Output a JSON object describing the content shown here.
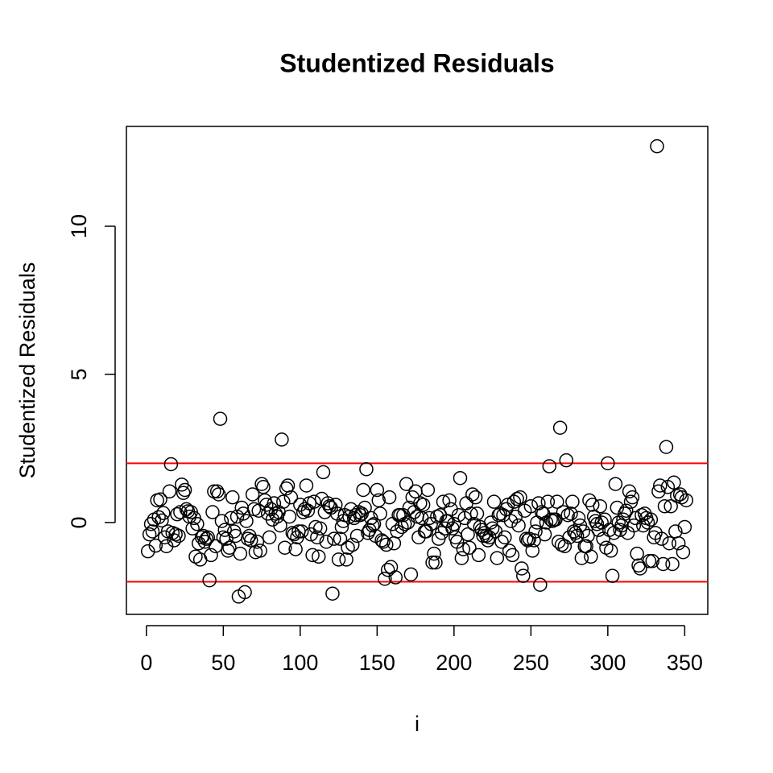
{
  "chart_data": {
    "type": "scatter",
    "title": "Studentized Residuals",
    "xlabel": "i",
    "ylabel": "Studentized Residuals",
    "xlim": [
      -13,
      365
    ],
    "ylim": [
      -3.1,
      13.37
    ],
    "xticks": [
      0,
      50,
      100,
      150,
      200,
      250,
      300,
      350
    ],
    "yticks": [
      0,
      5,
      10
    ],
    "color": "#000000",
    "hlines": [
      2,
      -2
    ],
    "hline_color": "#ff0000",
    "x": [
      1,
      2,
      3,
      4,
      5,
      6,
      7,
      8,
      9,
      10,
      11,
      12,
      13,
      14,
      15,
      16,
      17,
      18,
      19,
      20,
      21,
      22,
      23,
      24,
      25,
      26,
      27,
      28,
      29,
      30,
      31,
      32,
      33,
      34,
      35,
      36,
      37,
      38,
      39,
      40,
      41,
      42,
      43,
      44,
      45,
      46,
      47,
      48,
      49,
      50,
      51,
      52,
      53,
      54,
      55,
      56,
      57,
      58,
      59,
      60,
      61,
      62,
      63,
      64,
      65,
      66,
      67,
      68,
      69,
      70,
      71,
      72,
      73,
      74,
      75,
      76,
      77,
      78,
      79,
      80,
      81,
      82,
      83,
      84,
      85,
      86,
      87,
      88,
      89,
      90,
      91,
      92,
      93,
      94,
      95,
      96,
      97,
      98,
      99,
      100,
      101,
      102,
      103,
      104,
      105,
      106,
      107,
      108,
      109,
      110,
      111,
      112,
      113,
      114,
      115,
      116,
      117,
      118,
      119,
      120,
      121,
      122,
      123,
      124,
      125,
      126,
      127,
      128,
      129,
      130,
      131,
      132,
      133,
      134,
      135,
      136,
      137,
      138,
      139,
      140,
      141,
      142,
      143,
      144,
      145,
      146,
      147,
      148,
      149,
      150,
      151,
      152,
      153,
      154,
      155,
      156,
      157,
      158,
      159,
      160,
      161,
      162,
      163,
      164,
      165,
      166,
      167,
      168,
      169,
      170,
      171,
      172,
      173,
      174,
      175,
      176,
      177,
      178,
      179,
      180,
      181,
      182,
      183,
      184,
      185,
      186,
      187,
      188,
      189,
      190,
      191,
      192,
      193,
      194,
      195,
      196,
      197,
      198,
      199,
      200,
      201,
      202,
      203,
      204,
      205,
      206,
      207,
      208,
      209,
      210,
      211,
      212,
      213,
      214,
      215,
      216,
      217,
      218,
      219,
      220,
      221,
      222,
      223,
      224,
      225,
      226,
      227,
      228,
      229,
      230,
      231,
      232,
      233,
      234,
      235,
      236,
      237,
      238,
      239,
      240,
      241,
      242,
      243,
      244,
      245,
      246,
      247,
      248,
      249,
      250,
      251,
      252,
      253,
      254,
      255,
      256,
      257,
      258,
      259,
      260,
      261,
      262,
      263,
      264,
      265,
      266,
      267,
      268,
      269,
      270,
      271,
      272,
      273,
      274,
      275,
      276,
      277,
      278,
      279,
      280,
      281,
      282,
      283,
      284,
      285,
      286,
      287,
      288,
      289,
      290,
      291,
      292,
      293,
      294,
      295,
      296,
      297,
      298,
      299,
      300,
      301,
      302,
      303,
      304,
      305,
      306,
      307,
      308,
      309,
      310,
      311,
      312,
      313,
      314,
      315,
      316,
      317,
      318,
      319,
      320,
      321,
      322,
      323,
      324,
      325,
      326,
      327,
      328,
      329,
      330,
      331,
      332,
      333,
      334,
      335,
      336,
      337,
      338,
      339,
      340,
      341,
      342,
      343,
      344,
      345,
      346,
      347,
      348,
      349,
      350,
      351
    ],
    "values": [
      -0.97,
      -0.4,
      -0.05,
      -0.3,
      0.1,
      -0.78,
      0.75,
      0.18,
      0.78,
      0.07,
      0.32,
      -0.5,
      -0.8,
      -0.3,
      1.05,
      1.97,
      -0.35,
      -0.6,
      -0.4,
      0.28,
      -0.45,
      0.35,
      1.28,
      1.0,
      1.1,
      0.45,
      0.38,
      0.2,
      0.35,
      -0.2,
      0.15,
      -1.15,
      -0.05,
      -0.7,
      -1.25,
      -0.5,
      -0.45,
      -0.65,
      -0.55,
      -0.5,
      -1.95,
      -1.1,
      0.35,
      1.05,
      -0.8,
      1.05,
      0.95,
      3.5,
      0.05,
      -0.5,
      -0.25,
      -0.55,
      -0.95,
      -0.85,
      0.15,
      0.85,
      -0.3,
      -0.45,
      0.2,
      -2.5,
      -1.05,
      0.5,
      0.3,
      -2.35,
      0.05,
      -0.55,
      -0.45,
      -0.6,
      0.95,
      0.45,
      -1.0,
      -0.65,
      0.4,
      -0.95,
      1.3,
      1.2,
      0.75,
      0.6,
      0.3,
      -0.5,
      0.45,
      0.1,
      0.65,
      0.3,
      0.2,
      0.35,
      -0.1,
      2.8,
      0.7,
      -0.85,
      1.15,
      1.25,
      0.2,
      0.85,
      -0.35,
      -0.4,
      -0.9,
      -0.5,
      -0.3,
      0.6,
      -0.3,
      0.35,
      0.45,
      1.25,
      0.4,
      0.65,
      -0.4,
      -1.1,
      0.7,
      -0.15,
      -0.5,
      -1.15,
      -0.2,
      0.8,
      1.7,
      0.35,
      -0.65,
      0.65,
      0.55,
      0.5,
      -2.4,
      -0.55,
      0.6,
      0.3,
      -1.25,
      -0.55,
      -0.15,
      0.05,
      0.25,
      -1.25,
      -0.85,
      0.2,
      0.45,
      -0.75,
      0.15,
      0.25,
      -0.45,
      0.35,
      0.25,
      0.3,
      1.1,
      0.5,
      1.8,
      -0.35,
      -0.25,
      0.15,
      -0.1,
      -0.05,
      -0.45,
      1.1,
      0.75,
      0.3,
      -0.6,
      -0.65,
      -1.9,
      -0.75,
      -1.6,
      0.85,
      -1.5,
      -0.05,
      -0.7,
      -1.85,
      -0.3,
      0.25,
      0.25,
      -0.15,
      0.25,
      -0.05,
      1.3,
      0.0,
      0.5,
      -1.75,
      0.85,
      0.35,
      1.05,
      0.2,
      -0.5,
      0.65,
      0.15,
      0.6,
      -0.3,
      -0.3,
      1.1,
      0.15,
      -0.05,
      -1.35,
      -1.05,
      -1.35,
      0.2,
      -0.55,
      0.25,
      -0.35,
      0.7,
      -0.2,
      0.05,
      0.05,
      0.75,
      0.45,
      -0.2,
      -0.05,
      -0.5,
      -0.65,
      0.25,
      1.5,
      -1.2,
      -0.9,
      0.15,
      0.65,
      -0.4,
      -0.85,
      0.3,
      0.95,
      -0.05,
      0.85,
      0.3,
      -1.1,
      -0.15,
      -0.25,
      -0.45,
      -0.35,
      -0.45,
      -0.6,
      -0.5,
      0.0,
      -0.2,
      0.7,
      -0.3,
      -1.2,
      0.25,
      0.3,
      -0.65,
      0.25,
      -0.5,
      0.45,
      0.6,
      -0.95,
      0.05,
      -1.1,
      0.7,
      0.2,
      0.8,
      -0.1,
      0.85,
      -1.55,
      -1.8,
      0.4,
      -0.55,
      -0.6,
      -0.55,
      0.55,
      -0.95,
      -0.6,
      -0.3,
      0.0,
      0.65,
      -2.1,
      0.35,
      0.3,
      -0.4,
      0.0,
      0.7,
      1.9,
      0.1,
      0.05,
      0.1,
      0.1,
      0.7,
      -0.65,
      3.2,
      -0.75,
      0.35,
      -0.8,
      2.1,
      0.25,
      -0.5,
      0.3,
      0.7,
      -0.3,
      -0.35,
      -0.45,
      0.15,
      -0.1,
      -1.2,
      -0.3,
      -0.8,
      -0.8,
      -0.45,
      0.75,
      -1.15,
      0.6,
      0.2,
      0.05,
      -0.05,
      -0.25,
      0.55,
      0.0,
      -0.55,
      0.1,
      -0.85,
      2.0,
      -0.25,
      -0.95,
      -1.8,
      -0.35,
      1.3,
      0.5,
      0.0,
      -0.25,
      -0.1,
      0.1,
      0.3,
      0.4,
      -0.35,
      1.05,
      0.7,
      0.85,
      -0.1,
      0.15,
      -1.05,
      -1.45,
      -1.55,
      0.25,
      -0.1,
      0.3,
      0.15,
      0.0,
      -1.3,
      0.1,
      -1.3,
      -0.5,
      -0.35,
      12.7,
      1.05,
      1.25,
      -0.55,
      -1.4,
      0.55,
      2.55,
      1.2,
      -0.7,
      0.55,
      -1.4,
      1.35,
      -0.3,
      0.9,
      -0.7,
      0.95,
      0.85,
      -1.0,
      -0.15,
      0.75
    ]
  }
}
